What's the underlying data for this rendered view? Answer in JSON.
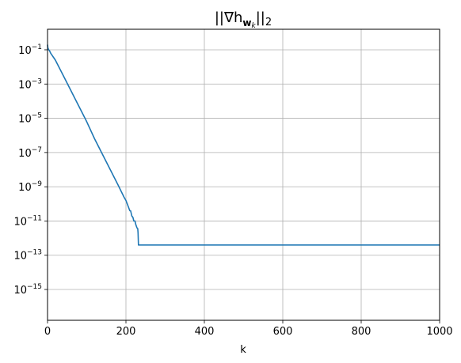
{
  "chart_data": {
    "type": "line",
    "title": {
      "prefix": "||∇h",
      "sub_w": "w",
      "sub_k": "k",
      "suffix": "||",
      "sub_2": "2"
    },
    "xlabel": "k",
    "ylabel": "",
    "xlim": [
      0,
      1000
    ],
    "ylim_exp": [
      -16.8,
      0.2
    ],
    "yscale": "log",
    "grid": true,
    "line_color": "#1f77b4",
    "grid_color": "#b0b0b0",
    "x_ticks": [
      {
        "value": 0,
        "label": "0"
      },
      {
        "value": 200,
        "label": "200"
      },
      {
        "value": 400,
        "label": "400"
      },
      {
        "value": 600,
        "label": "600"
      },
      {
        "value": 800,
        "label": "800"
      },
      {
        "value": 1000,
        "label": "1000"
      }
    ],
    "y_ticks": [
      {
        "exp": -1,
        "base": "10",
        "power": "−1"
      },
      {
        "exp": -3,
        "base": "10",
        "power": "−3"
      },
      {
        "exp": -5,
        "base": "10",
        "power": "−5"
      },
      {
        "exp": -7,
        "base": "10",
        "power": "−7"
      },
      {
        "exp": -9,
        "base": "10",
        "power": "−9"
      },
      {
        "exp": -11,
        "base": "10",
        "power": "−11"
      },
      {
        "exp": -13,
        "base": "10",
        "power": "−13"
      },
      {
        "exp": -15,
        "base": "10",
        "power": "−15"
      }
    ],
    "series": [
      {
        "x": [
          0,
          1,
          3,
          5,
          8,
          20,
          40,
          60,
          80,
          100,
          120,
          140,
          160,
          180,
          195,
          200,
          205,
          210,
          212,
          215,
          218,
          220,
          223,
          225,
          228,
          230,
          231,
          232,
          300,
          400,
          500,
          600,
          700,
          800,
          900,
          1000
        ],
        "y_exp": [
          -0.7,
          -0.9,
          -1.0,
          -1.05,
          -1.2,
          -1.6,
          -2.5,
          -3.4,
          -4.3,
          -5.2,
          -6.2,
          -7.1,
          -8.0,
          -8.9,
          -9.6,
          -9.8,
          -10.1,
          -10.4,
          -10.4,
          -10.7,
          -10.8,
          -11.0,
          -11.0,
          -11.2,
          -11.4,
          -11.45,
          -11.7,
          -12.4,
          -12.4,
          -12.4,
          -12.4,
          -12.4,
          -12.4,
          -12.4,
          -12.4,
          -12.4
        ]
      }
    ]
  }
}
